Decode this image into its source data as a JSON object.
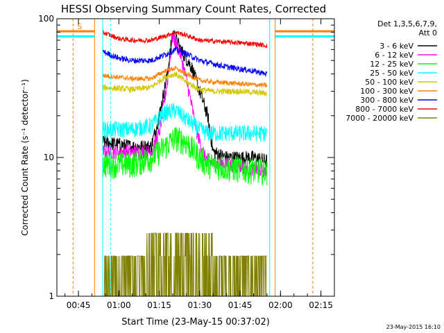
{
  "chart_data": {
    "type": "line",
    "title": "HESSI Observing Summary Count Rates, Corrected",
    "xlabel": "Start Time (23-May-15 00:37:02)",
    "ylabel": "Corrected Count Rate (s⁻¹ detector⁻¹)",
    "x_range": [
      "00:37",
      "02:20"
    ],
    "ylim": [
      1,
      100
    ],
    "y_scale": "log",
    "x_ticks": [
      "00:45",
      "01:00",
      "01:15",
      "01:30",
      "01:45",
      "02:00",
      "02:15"
    ],
    "y_ticks": [
      "1",
      "10",
      "100"
    ],
    "grid": false,
    "legend_position": "right",
    "legend_header": [
      "Det 1,3,5,6,7,9,",
      "Att 0"
    ],
    "timestamp": "23-May-2015 16:10",
    "attenuator_marker": "S",
    "colors": {
      "3-6": "#000000",
      "6-12": "#ff00ff",
      "12-25": "#00ff00",
      "25-50": "#00ffff",
      "50-100": "#d4c800",
      "100-300": "#ff7f00",
      "300-800": "#0000ff",
      "800-7000": "#ff0000",
      "7000-20000": "#808000"
    },
    "series": [
      {
        "name": "3 - 6 keV",
        "color": "#000000",
        "x": [
          "00:54",
          "01:05",
          "01:12",
          "01:15",
          "01:18",
          "01:20",
          "01:23",
          "01:27",
          "01:30",
          "01:33",
          "01:35",
          "01:40",
          "01:50",
          "01:55"
        ],
        "y": [
          13,
          12,
          12,
          20,
          40,
          80,
          60,
          45,
          30,
          20,
          11,
          10,
          10,
          9.5
        ]
      },
      {
        "name": "6 - 12 keV",
        "color": "#ff00ff",
        "x": [
          "00:54",
          "01:05",
          "01:12",
          "01:15",
          "01:18",
          "01:20",
          "01:23",
          "01:26",
          "01:29",
          "01:32",
          "01:35",
          "01:40",
          "01:55"
        ],
        "y": [
          11,
          11,
          11,
          15,
          35,
          75,
          55,
          30,
          15,
          10,
          9,
          9,
          8
        ]
      },
      {
        "name": "12 - 25 keV",
        "color": "#00ff00",
        "x": [
          "00:54",
          "01:05",
          "01:12",
          "01:17",
          "01:21",
          "01:25",
          "01:30",
          "01:33",
          "01:40",
          "01:55"
        ],
        "y": [
          9,
          9,
          10,
          12,
          14,
          13,
          10,
          9,
          8.5,
          8
        ]
      },
      {
        "name": "25 - 50 keV",
        "color": "#00ffff",
        "x": [
          "00:54",
          "01:05",
          "01:12",
          "01:17",
          "01:21",
          "01:25",
          "01:30",
          "01:33",
          "01:40",
          "01:55"
        ],
        "y": [
          16,
          16,
          17,
          21,
          22,
          19,
          16,
          15,
          15,
          15
        ]
      },
      {
        "name": "50 - 100 keV",
        "color": "#d4c800",
        "x": [
          "00:54",
          "01:05",
          "01:12",
          "01:17",
          "01:21",
          "01:25",
          "01:30",
          "01:35",
          "01:45",
          "01:55"
        ],
        "y": [
          32,
          31,
          32,
          38,
          40,
          35,
          31,
          30,
          30,
          29
        ]
      },
      {
        "name": "100 - 300 keV",
        "color": "#ff7f00",
        "x": [
          "00:54",
          "01:05",
          "01:12",
          "01:17",
          "01:21",
          "01:25",
          "01:30",
          "01:35",
          "01:45",
          "01:55"
        ],
        "y": [
          39,
          37,
          37,
          42,
          44,
          40,
          36,
          35,
          34,
          33
        ]
      },
      {
        "name": "300 - 800 keV",
        "color": "#0000ff",
        "x": [
          "00:54",
          "01:00",
          "01:05",
          "01:12",
          "01:17",
          "01:21",
          "01:25",
          "01:30",
          "01:40",
          "01:50",
          "01:55"
        ],
        "y": [
          58,
          52,
          50,
          50,
          55,
          60,
          56,
          50,
          45,
          42,
          40
        ]
      },
      {
        "name": "800 - 7000 keV",
        "color": "#ff0000",
        "x": [
          "00:54",
          "01:00",
          "01:05",
          "01:12",
          "01:17",
          "01:21",
          "01:25",
          "01:30",
          "01:40",
          "01:50",
          "01:55"
        ],
        "y": [
          80,
          72,
          70,
          70,
          75,
          80,
          76,
          70,
          68,
          66,
          64
        ]
      },
      {
        "name": "7000 - 20000 keV",
        "color": "#808000",
        "x": [
          "00:54",
          "01:05",
          "01:10",
          "01:35",
          "01:45",
          "01:55"
        ],
        "y": [
          1.9,
          1.9,
          2.8,
          2.8,
          1.9,
          1.9
        ]
      }
    ]
  }
}
